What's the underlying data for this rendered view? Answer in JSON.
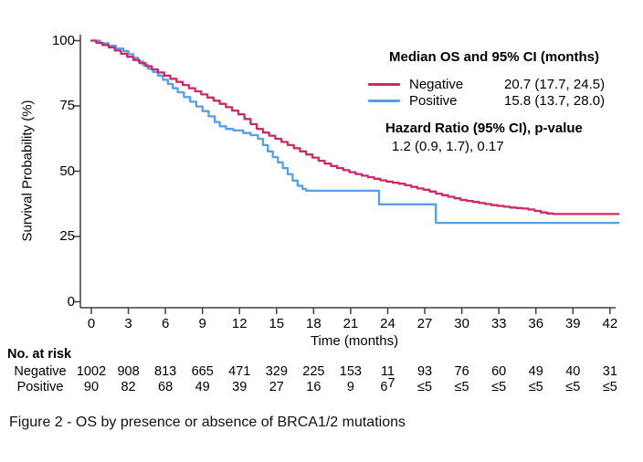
{
  "figure": {
    "caption": "Figure 2 - OS by presence or absence of BRCA1/2 mutations"
  },
  "legend": {
    "title": "Median OS and 95% CI (months)",
    "rows": [
      {
        "label": "Negative",
        "value": "20.7 (17.7, 24.5)",
        "color": "#CB2A64"
      },
      {
        "label": "Positive",
        "value": "15.8 (13.7, 28.0)",
        "color": "#539EEF"
      }
    ],
    "hr_title": "Hazard Ratio (95% CI), p-value",
    "hr_value": "1.2 (0.9, 1.7), 0.17"
  },
  "chart_data": {
    "type": "line",
    "subtype": "kaplan-meier-step",
    "title": "",
    "xlabel": "Time (months)",
    "ylabel": "Survival Probability (%)",
    "xlim": [
      0,
      42
    ],
    "ylim": [
      0,
      100
    ],
    "x_ticks": [
      0,
      3,
      6,
      9,
      12,
      15,
      18,
      21,
      24,
      27,
      30,
      33,
      36,
      39,
      42
    ],
    "y_ticks": [
      0,
      25,
      50,
      75,
      100
    ],
    "grid": false,
    "legend_position": "top-right-inside",
    "axis_color": "#3f3f3f",
    "hazard_ratio_p_value": "1.2 (0.9, 1.7), 0.17",
    "series": [
      {
        "name": "Negative",
        "color": "#CB2A64",
        "median_os_95ci_months": "20.7 (17.7, 24.5)",
        "points": [
          [
            0,
            100
          ],
          [
            0.4,
            99.2
          ],
          [
            0.9,
            98.3
          ],
          [
            1.4,
            97.4
          ],
          [
            1.9,
            96.2
          ],
          [
            2.4,
            95
          ],
          [
            2.9,
            93.8
          ],
          [
            3.4,
            92.6
          ],
          [
            3.9,
            91.4
          ],
          [
            4.4,
            90.2
          ],
          [
            4.9,
            89
          ],
          [
            5.4,
            87.8
          ],
          [
            5.9,
            86.6
          ],
          [
            6.4,
            85.4
          ],
          [
            6.9,
            84.2
          ],
          [
            7.4,
            83
          ],
          [
            7.9,
            81.8
          ],
          [
            8.4,
            80.6
          ],
          [
            8.9,
            79.4
          ],
          [
            9.4,
            78.2
          ],
          [
            9.9,
            77
          ],
          [
            10.4,
            75.8
          ],
          [
            10.9,
            74.5
          ],
          [
            11.4,
            73.2
          ],
          [
            11.9,
            71.8
          ],
          [
            12.4,
            70
          ],
          [
            12.9,
            68
          ],
          [
            13.4,
            66.2
          ],
          [
            13.9,
            64.8
          ],
          [
            14.4,
            63.6
          ],
          [
            14.9,
            62.4
          ],
          [
            15.4,
            61.2
          ],
          [
            15.9,
            60
          ],
          [
            16.4,
            58.8
          ],
          [
            16.9,
            57.6
          ],
          [
            17.4,
            56.4
          ],
          [
            17.9,
            55.2
          ],
          [
            18.4,
            54
          ],
          [
            18.9,
            52.9
          ],
          [
            19.4,
            52
          ],
          [
            19.9,
            51.2
          ],
          [
            20.4,
            50.4
          ],
          [
            20.9,
            49.6
          ],
          [
            21.4,
            48.9
          ],
          [
            21.9,
            48.3
          ],
          [
            22.4,
            47.7
          ],
          [
            22.9,
            47.1
          ],
          [
            23.4,
            46.5
          ],
          [
            23.9,
            46
          ],
          [
            24.4,
            45.6
          ],
          [
            24.9,
            45.2
          ],
          [
            25.4,
            44.6
          ],
          [
            25.9,
            44
          ],
          [
            26.4,
            43.4
          ],
          [
            26.9,
            42.9
          ],
          [
            27.4,
            42.2
          ],
          [
            27.9,
            41.4
          ],
          [
            28.4,
            40.8
          ],
          [
            28.9,
            40.2
          ],
          [
            29.4,
            39.6
          ],
          [
            29.9,
            39
          ],
          [
            30.4,
            38.6
          ],
          [
            30.9,
            38.2
          ],
          [
            31.4,
            37.8
          ],
          [
            31.9,
            37.4
          ],
          [
            32.4,
            37
          ],
          [
            32.9,
            36.7
          ],
          [
            33.4,
            36.4
          ],
          [
            33.9,
            36.1
          ],
          [
            34.4,
            35.9
          ],
          [
            34.9,
            35.7
          ],
          [
            35.4,
            35.3
          ],
          [
            35.9,
            34.8
          ],
          [
            36.4,
            34.2
          ],
          [
            36.9,
            33.8
          ],
          [
            37.4,
            33.6
          ],
          [
            42.7,
            33.6
          ]
        ]
      },
      {
        "name": "Positive",
        "color": "#539EEF",
        "median_os_95ci_months": "15.8 (13.7, 28.0)",
        "points": [
          [
            0,
            100
          ],
          [
            0.7,
            99
          ],
          [
            1.4,
            98
          ],
          [
            2,
            97
          ],
          [
            2.6,
            96
          ],
          [
            3,
            94.8
          ],
          [
            3.4,
            93.4
          ],
          [
            3.8,
            92
          ],
          [
            4.2,
            90.6
          ],
          [
            4.6,
            89.2
          ],
          [
            5,
            88
          ],
          [
            5.4,
            86.6
          ],
          [
            5.8,
            85
          ],
          [
            6.2,
            83.4
          ],
          [
            6.6,
            81.8
          ],
          [
            7,
            80.2
          ],
          [
            7.5,
            78.4
          ],
          [
            8,
            76.6
          ],
          [
            8.5,
            74.8
          ],
          [
            9,
            73
          ],
          [
            9.5,
            71
          ],
          [
            10,
            68.8
          ],
          [
            10.4,
            67.2
          ],
          [
            10.9,
            66.2
          ],
          [
            11.5,
            65.6
          ],
          [
            12.3,
            64.6
          ],
          [
            12.9,
            63.8
          ],
          [
            13.5,
            62.4
          ],
          [
            13.9,
            60
          ],
          [
            14.3,
            57.6
          ],
          [
            14.7,
            55.4
          ],
          [
            15.1,
            53.4
          ],
          [
            15.5,
            51.2
          ],
          [
            15.9,
            48.8
          ],
          [
            16.3,
            46.4
          ],
          [
            16.7,
            44.4
          ],
          [
            17.1,
            43.2
          ],
          [
            17.4,
            42.5
          ],
          [
            23.3,
            37.3
          ],
          [
            27.9,
            30.2
          ],
          [
            42.7,
            30.2
          ]
        ]
      }
    ]
  },
  "risk_table": {
    "title": "No. at risk",
    "rows": [
      {
        "label": "Negative",
        "values": [
          "1002",
          "908",
          "813",
          "665",
          "471",
          "329",
          "225",
          "153",
          "11",
          "93",
          "76",
          "60",
          "49",
          "40",
          "31"
        ]
      },
      {
        "label": "Positive",
        "values": [
          "90",
          "82",
          "68",
          "49",
          "39",
          "27",
          "16",
          "9",
          {
            "t": "6",
            "sup": "7"
          },
          "≤5",
          "≤5",
          "≤5",
          "≤5",
          "≤5",
          "≤5"
        ]
      }
    ]
  }
}
